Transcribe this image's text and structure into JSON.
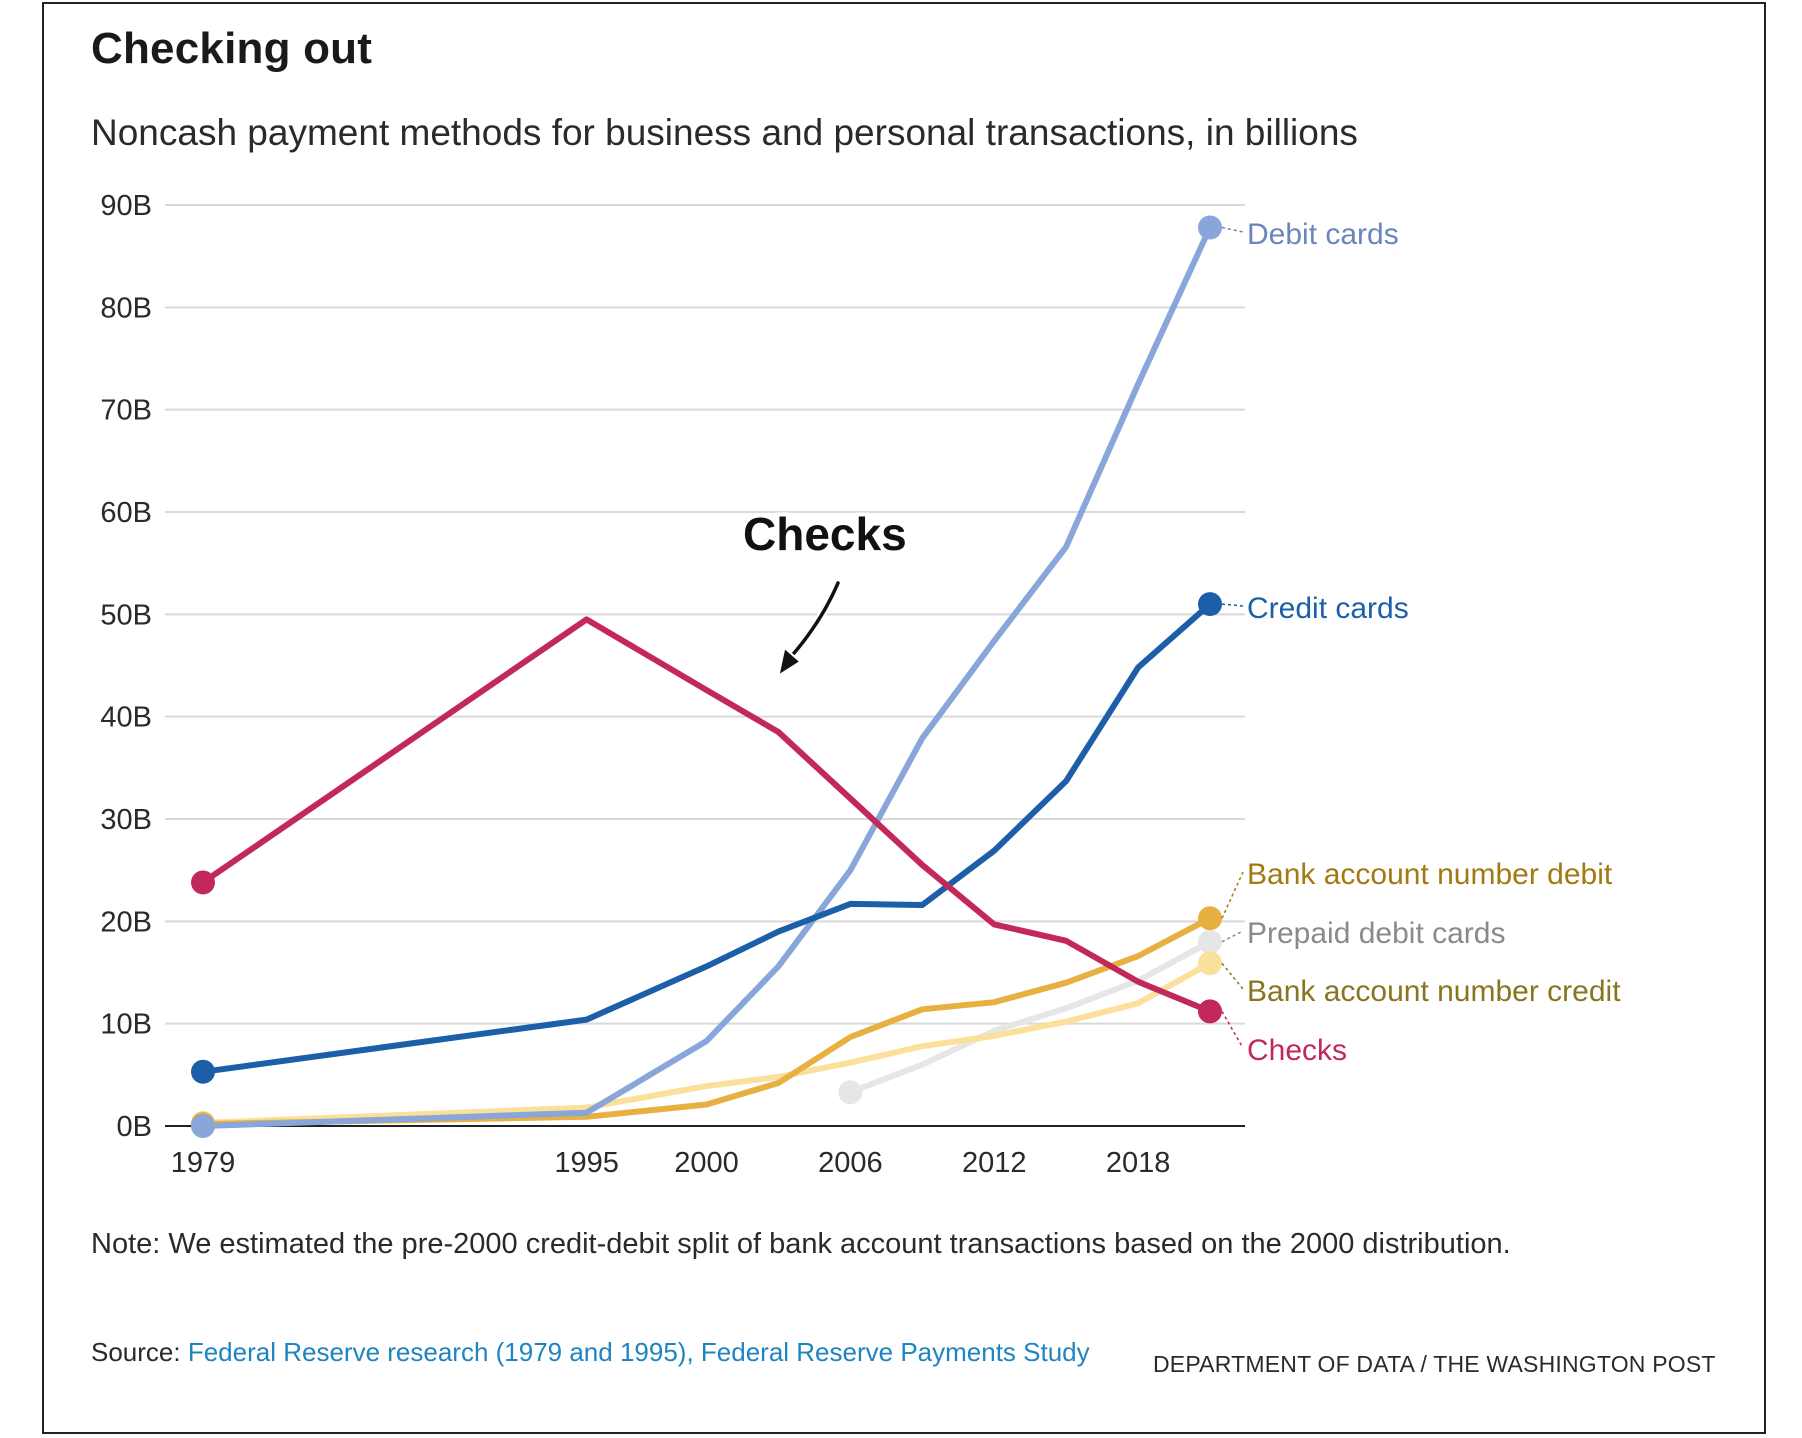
{
  "header": {
    "title": "Checking out",
    "subtitle": "Noncash payment methods for business and personal transactions, in billions"
  },
  "footer": {
    "note": "Note: We estimated the pre-2000 credit-debit split of bank account transactions based on the 2000 distribution.",
    "source_prefix": "Source: ",
    "source_link": "Federal Reserve research (1979 and 1995), Federal Reserve Payments Study",
    "credit": "DEPARTMENT OF DATA / THE WASHINGTON POST"
  },
  "chart_data": {
    "type": "line",
    "title": "Checking out",
    "subtitle": "Noncash payment methods for business and personal transactions, in billions",
    "xlabel": "",
    "ylabel": "",
    "xlim": [
      1979,
      2021
    ],
    "ylim": [
      0,
      90
    ],
    "yticks": [
      0,
      10,
      20,
      30,
      40,
      50,
      60,
      70,
      80,
      90
    ],
    "ytick_labels": [
      "0B",
      "10B",
      "20B",
      "30B",
      "40B",
      "50B",
      "60B",
      "70B",
      "80B",
      "90B"
    ],
    "xticks": [
      1979,
      1995,
      2000,
      2006,
      2012,
      2018
    ],
    "xtick_labels": [
      "1979",
      "1995",
      "2000",
      "2006",
      "2012",
      "2018"
    ],
    "grid": "horizontal",
    "legend": "direct labels at right end of lines",
    "annotation": {
      "text": "Checks",
      "points_to": {
        "x": 2003,
        "y": 44
      }
    },
    "series": [
      {
        "name": "Prepaid debit cards",
        "color": "#e6e6e6",
        "label_color": "#8a8a8a",
        "x": [
          2006,
          2009,
          2012,
          2015,
          2018,
          2021
        ],
        "y": [
          3.3,
          6.0,
          9.3,
          11.5,
          14.2,
          18.0
        ]
      },
      {
        "name": "Bank account number credit",
        "color": "#fbe09b",
        "label_color": "#8a7420",
        "x": [
          1979,
          1995,
          2000,
          2003,
          2006,
          2009,
          2012,
          2015,
          2018,
          2021
        ],
        "y": [
          0.3,
          1.8,
          3.9,
          4.8,
          6.2,
          7.8,
          8.8,
          10.2,
          12.0,
          15.9
        ]
      },
      {
        "name": "Bank account number debit",
        "color": "#e8b040",
        "label_color": "#a27a12",
        "x": [
          1979,
          1995,
          2000,
          2003,
          2006,
          2009,
          2012,
          2015,
          2018,
          2021
        ],
        "y": [
          0.2,
          0.9,
          2.1,
          4.2,
          8.7,
          11.4,
          12.1,
          14.0,
          16.6,
          20.3
        ]
      },
      {
        "name": "Debit cards",
        "color": "#88a6d9",
        "label_color": "#6b86bb",
        "x": [
          1979,
          1995,
          2000,
          2003,
          2006,
          2009,
          2012,
          2015,
          2018,
          2021
        ],
        "y": [
          0.0,
          1.3,
          8.3,
          15.6,
          25.0,
          37.9,
          47.4,
          56.6,
          72.5,
          87.8
        ]
      },
      {
        "name": "Credit cards",
        "color": "#1c5fa8",
        "label_color": "#1c5fa8",
        "x": [
          1979,
          1995,
          2000,
          2003,
          2006,
          2009,
          2012,
          2015,
          2018,
          2021
        ],
        "y": [
          5.3,
          10.4,
          15.6,
          19.0,
          21.7,
          21.6,
          26.9,
          33.7,
          44.8,
          51.0
        ]
      },
      {
        "name": "Checks",
        "color": "#c3285a",
        "label_color": "#c3285a",
        "x": [
          1979,
          1995,
          2000,
          2003,
          2006,
          2009,
          2012,
          2015,
          2018,
          2021
        ],
        "y": [
          23.8,
          49.5,
          42.6,
          38.5,
          32.0,
          25.5,
          19.7,
          18.1,
          14.1,
          11.2
        ]
      }
    ],
    "end_labels": [
      {
        "text": "Debit cards",
        "color": "#6b86bb"
      },
      {
        "text": "Credit cards",
        "color": "#1c5fa8"
      },
      {
        "text": "Bank account number debit",
        "color": "#a27a12"
      },
      {
        "text": "Prepaid debit cards",
        "color": "#8a8a8a"
      },
      {
        "text": "Bank account number credit",
        "color": "#8a7420"
      },
      {
        "text": "Checks",
        "color": "#c3285a"
      }
    ]
  }
}
